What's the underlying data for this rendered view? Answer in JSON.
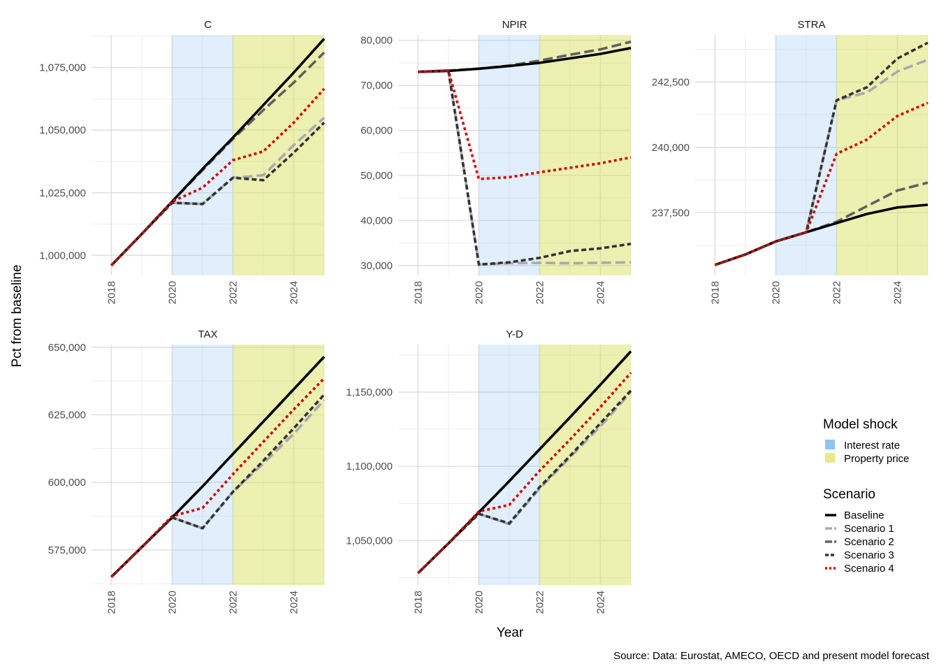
{
  "y_axis_title": "Pct from baseline",
  "x_axis_title": "Year",
  "caption": "Source: Data: Eurostat, AMECO, OECD and present model forecast",
  "legend": {
    "shock_title": "Model shock",
    "shocks": [
      {
        "label": "Interest rate",
        "color": "#8EC4F0"
      },
      {
        "label": "Property price",
        "color": "#E4EA8C"
      }
    ],
    "scenario_title": "Scenario",
    "scenarios": [
      {
        "label": "Baseline",
        "color": "#000000",
        "dash": "solid"
      },
      {
        "label": "Scenario 1",
        "color": "#A9A9AF",
        "dash": "longdash"
      },
      {
        "label": "Scenario 2",
        "color": "#606060",
        "dash": "longdash"
      },
      {
        "label": "Scenario 3",
        "color": "#333333",
        "dash": "dashed"
      },
      {
        "label": "Scenario 4",
        "color": "#D40000",
        "dash": "dotted"
      }
    ]
  },
  "chart_data": [
    {
      "type": "line",
      "title": "C",
      "x": [
        2018,
        2019,
        2020,
        2021,
        2022,
        2023,
        2024,
        2025
      ],
      "x_ticks": [
        "2018",
        "2020",
        "2022",
        "2024"
      ],
      "y_ticks": [
        "1,000,000",
        "1,025,000",
        "1,050,000",
        "1,075,000"
      ],
      "y_tick_values": [
        1000000,
        1025000,
        1050000,
        1075000
      ],
      "ylim": [
        992000,
        1088000
      ],
      "shock_periods": [
        {
          "shock": "Interest rate",
          "range": [
            2020,
            2022
          ]
        },
        {
          "shock": "Property price",
          "range": [
            2022,
            2025
          ]
        }
      ],
      "series": [
        {
          "name": "Baseline",
          "values": [
            996000,
            1008500,
            1021500,
            1034500,
            1047000,
            1060000,
            1073000,
            1086500
          ]
        },
        {
          "name": "Scenario 1",
          "values": [
            996000,
            1008500,
            1021000,
            1020500,
            1031000,
            1032000,
            1044000,
            1055000
          ]
        },
        {
          "name": "Scenario 2",
          "values": [
            996000,
            1008500,
            1021500,
            1034000,
            1046500,
            1058000,
            1069000,
            1081000
          ]
        },
        {
          "name": "Scenario 3",
          "values": [
            996000,
            1008500,
            1021000,
            1020500,
            1031000,
            1030000,
            1041000,
            1053000
          ]
        },
        {
          "name": "Scenario 4",
          "values": [
            996000,
            1008500,
            1021500,
            1027000,
            1038000,
            1041500,
            1053000,
            1066500
          ]
        }
      ]
    },
    {
      "type": "line",
      "title": "NPIR",
      "x": [
        2018,
        2019,
        2020,
        2021,
        2022,
        2023,
        2024,
        2025
      ],
      "x_ticks": [
        "2018",
        "2020",
        "2022",
        "2024"
      ],
      "y_ticks": [
        "30,000",
        "40,000",
        "50,000",
        "60,000",
        "70,000",
        "80,000"
      ],
      "y_tick_values": [
        30000,
        40000,
        50000,
        60000,
        70000,
        80000
      ],
      "ylim": [
        27800,
        81200
      ],
      "shock_periods": [
        {
          "shock": "Interest rate",
          "range": [
            2020,
            2022
          ]
        },
        {
          "shock": "Property price",
          "range": [
            2022,
            2025
          ]
        }
      ],
      "series": [
        {
          "name": "Baseline",
          "values": [
            73000,
            73200,
            73700,
            74300,
            75000,
            76000,
            77000,
            78300
          ]
        },
        {
          "name": "Scenario 1",
          "values": [
            73000,
            73300,
            30200,
            30500,
            30600,
            30500,
            30600,
            30700
          ]
        },
        {
          "name": "Scenario 2",
          "values": [
            73000,
            73300,
            73700,
            74400,
            75500,
            76800,
            78000,
            79700
          ]
        },
        {
          "name": "Scenario 3",
          "values": [
            73000,
            73300,
            30200,
            30700,
            31700,
            33200,
            33800,
            34800
          ]
        },
        {
          "name": "Scenario 4",
          "values": [
            73000,
            73300,
            49200,
            49600,
            50700,
            51700,
            52700,
            54000
          ]
        }
      ]
    },
    {
      "type": "line",
      "title": "STRA",
      "x": [
        2018,
        2019,
        2020,
        2021,
        2022,
        2023,
        2024,
        2025
      ],
      "x_ticks": [
        "2018",
        "2020",
        "2022",
        "2024"
      ],
      "y_ticks": [
        "237,500",
        "240,000",
        "242,500"
      ],
      "y_tick_values": [
        237500,
        240000,
        242500
      ],
      "ylim": [
        235100,
        244300
      ],
      "shock_periods": [
        {
          "shock": "Interest rate",
          "range": [
            2020,
            2022
          ]
        },
        {
          "shock": "Property price",
          "range": [
            2022,
            2025
          ]
        }
      ],
      "series": [
        {
          "name": "Baseline",
          "values": [
            235500,
            235900,
            236400,
            236750,
            237100,
            237450,
            237700,
            237800
          ]
        },
        {
          "name": "Scenario 1",
          "values": [
            235500,
            235900,
            236400,
            236750,
            241800,
            242100,
            242900,
            243350
          ]
        },
        {
          "name": "Scenario 2",
          "values": [
            235500,
            235900,
            236400,
            236750,
            237150,
            237750,
            238350,
            238650
          ]
        },
        {
          "name": "Scenario 3",
          "values": [
            235500,
            235900,
            236400,
            236750,
            241800,
            242300,
            243400,
            244000
          ]
        },
        {
          "name": "Scenario 4",
          "values": [
            235500,
            235900,
            236400,
            236750,
            239750,
            240300,
            241200,
            241700
          ]
        }
      ]
    },
    {
      "type": "line",
      "title": "TAX",
      "x": [
        2018,
        2019,
        2020,
        2021,
        2022,
        2023,
        2024,
        2025
      ],
      "x_ticks": [
        "2018",
        "2020",
        "2022",
        "2024"
      ],
      "y_ticks": [
        "575,000",
        "600,000",
        "625,000",
        "650,000"
      ],
      "y_tick_values": [
        575000,
        600000,
        625000,
        650000
      ],
      "ylim": [
        562000,
        651000
      ],
      "shock_periods": [
        {
          "shock": "Interest rate",
          "range": [
            2020,
            2022
          ]
        },
        {
          "shock": "Property price",
          "range": [
            2022,
            2025
          ]
        }
      ],
      "series": [
        {
          "name": "Baseline",
          "values": [
            565000,
            576000,
            587000,
            598500,
            610500,
            622500,
            634500,
            646500
          ]
        },
        {
          "name": "Scenario 1",
          "values": [
            565000,
            576000,
            587000,
            583000,
            596500,
            607000,
            618000,
            630500
          ]
        },
        {
          "name": "Scenario 2",
          "values": [
            565000,
            576000,
            587000,
            598500,
            610500,
            622500,
            634500,
            646500
          ]
        },
        {
          "name": "Scenario 3",
          "values": [
            565000,
            576000,
            587000,
            583000,
            596500,
            608000,
            620000,
            632500
          ]
        },
        {
          "name": "Scenario 4",
          "values": [
            565000,
            576000,
            587500,
            590500,
            603000,
            615000,
            627000,
            638500
          ]
        }
      ]
    },
    {
      "type": "line",
      "title": "Y-D",
      "x": [
        2018,
        2019,
        2020,
        2021,
        2022,
        2023,
        2024,
        2025
      ],
      "x_ticks": [
        "2018",
        "2020",
        "2022",
        "2024"
      ],
      "y_ticks": [
        "1,050,000",
        "1,100,000",
        "1,150,000"
      ],
      "y_tick_values": [
        1050000,
        1100000,
        1150000
      ],
      "ylim": [
        1020000,
        1182000
      ],
      "shock_periods": [
        {
          "shock": "Interest rate",
          "range": [
            2020,
            2022
          ]
        },
        {
          "shock": "Property price",
          "range": [
            2022,
            2025
          ]
        }
      ],
      "series": [
        {
          "name": "Baseline",
          "values": [
            1028000,
            1048000,
            1069000,
            1090000,
            1111500,
            1133000,
            1155000,
            1177500
          ]
        },
        {
          "name": "Scenario 1",
          "values": [
            1028000,
            1048000,
            1068000,
            1061000,
            1085000,
            1106000,
            1127000,
            1150000
          ]
        },
        {
          "name": "Scenario 2",
          "values": [
            1028000,
            1048000,
            1069000,
            1090000,
            1111500,
            1133000,
            1155000,
            1177500
          ]
        },
        {
          "name": "Scenario 3",
          "values": [
            1028000,
            1048000,
            1068000,
            1061500,
            1086000,
            1107000,
            1129000,
            1151000
          ]
        },
        {
          "name": "Scenario 4",
          "values": [
            1028000,
            1048000,
            1069500,
            1074000,
            1097000,
            1118000,
            1140000,
            1163000
          ]
        }
      ]
    }
  ]
}
